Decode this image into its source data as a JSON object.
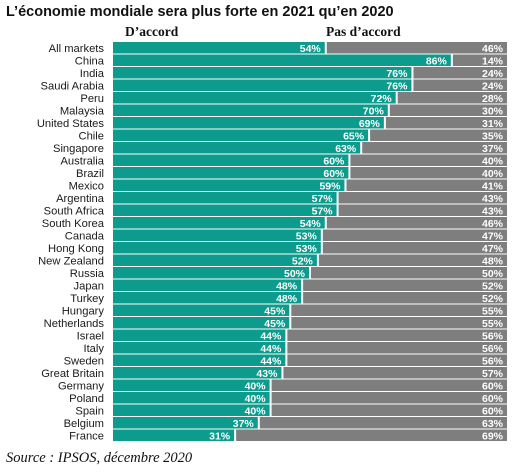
{
  "chart_data": {
    "type": "bar",
    "orientation": "horizontal",
    "stacked": true,
    "title": "L’économie mondiale sera plus forte en 2021 qu’en 2020",
    "source": "Source : IPSOS, décembre 2020",
    "categories": [
      "All markets",
      "China",
      "India",
      "Saudi Arabia",
      "Peru",
      "Malaysia",
      "United States",
      "Chile",
      "Singapore",
      "Australia",
      "Brazil",
      "Mexico",
      "Argentina",
      "South Africa",
      "South Korea",
      "Canada",
      "Hong Kong",
      "New Zealand",
      "Russia",
      "Japan",
      "Turkey",
      "Hungary",
      "Netherlands",
      "Israel",
      "Italy",
      "Sweden",
      "Great Britain",
      "Germany",
      "Poland",
      "Spain",
      "Belgium",
      "France"
    ],
    "series": [
      {
        "name": "D’accord",
        "color": "#0d9b8d",
        "values": [
          54,
          86,
          76,
          76,
          72,
          70,
          69,
          65,
          63,
          60,
          60,
          59,
          57,
          57,
          54,
          53,
          53,
          52,
          50,
          48,
          48,
          45,
          45,
          44,
          44,
          44,
          43,
          40,
          40,
          40,
          37,
          31
        ]
      },
      {
        "name": "Pas d’accord",
        "color": "#7e7e7e",
        "values": [
          46,
          14,
          24,
          24,
          28,
          30,
          31,
          35,
          37,
          40,
          40,
          41,
          43,
          43,
          46,
          47,
          47,
          48,
          50,
          52,
          52,
          55,
          55,
          56,
          56,
          56,
          57,
          60,
          60,
          60,
          63,
          69
        ]
      }
    ],
    "value_suffix": "%",
    "xlim": [
      0,
      100
    ],
    "grid": false,
    "legend_position": "top"
  }
}
